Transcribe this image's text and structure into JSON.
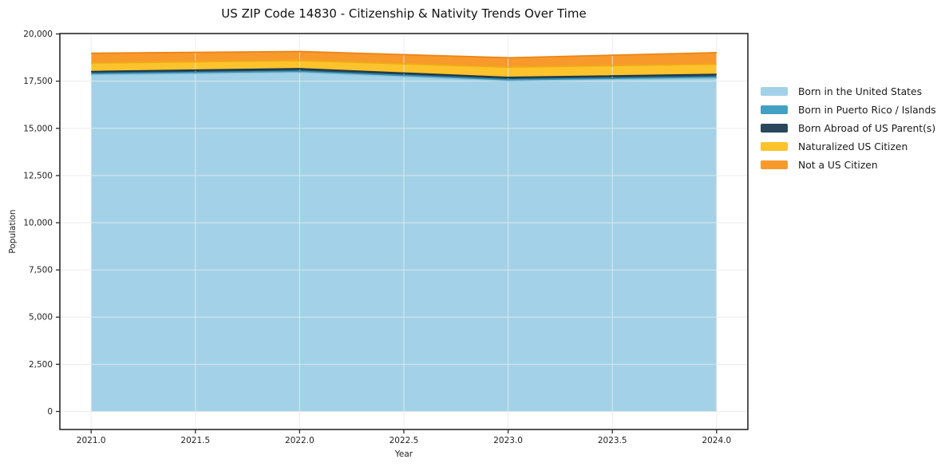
{
  "chart": {
    "title": "US ZIP Code 14830 - Citizenship & Nativity Trends Over Time",
    "xlabel": "Year",
    "ylabel": "Population"
  },
  "chart_data": {
    "type": "area",
    "stacked": true,
    "title": "US ZIP Code 14830 - Citizenship & Nativity Trends Over Time",
    "xlabel": "Year",
    "ylabel": "Population",
    "x": [
      2021,
      2022,
      2023,
      2024
    ],
    "series": [
      {
        "name": "Born in the United States",
        "color": "#a3d2e8",
        "edge": "#8fc5dd",
        "values": [
          17840,
          17960,
          17520,
          17650
        ]
      },
      {
        "name": "Born in Puerto Rico / Islands",
        "color": "#41a0c3",
        "edge": "#3690b2",
        "values": [
          60,
          65,
          60,
          70
        ]
      },
      {
        "name": "Born Abroad of US Parent(s)",
        "color": "#29485d",
        "edge": "#1f3949",
        "values": [
          110,
          135,
          120,
          140
        ]
      },
      {
        "name": "Naturalized US Citizen",
        "color": "#fcc32d",
        "edge": "#efac15",
        "values": [
          450,
          430,
          540,
          540
        ]
      },
      {
        "name": "Not a US Citizen",
        "color": "#f8992c",
        "edge": "#ec8517",
        "values": [
          520,
          480,
          500,
          610
        ]
      }
    ],
    "totals": [
      18980,
      19070,
      18740,
      19010
    ],
    "xlim": [
      2020.85,
      2024.15
    ],
    "ylim": [
      -953,
      20023
    ],
    "x_ticks": [
      {
        "value": 2021.0,
        "label": "2021.0"
      },
      {
        "value": 2021.5,
        "label": "2021.5"
      },
      {
        "value": 2022.0,
        "label": "2022.0"
      },
      {
        "value": 2022.5,
        "label": "2022.5"
      },
      {
        "value": 2023.0,
        "label": "2023.0"
      },
      {
        "value": 2023.5,
        "label": "2023.5"
      },
      {
        "value": 2024.0,
        "label": "2024.0"
      }
    ],
    "y_ticks": [
      {
        "value": 0,
        "label": "0"
      },
      {
        "value": 2500,
        "label": "2,500"
      },
      {
        "value": 5000,
        "label": "5,000"
      },
      {
        "value": 7500,
        "label": "7,500"
      },
      {
        "value": 10000,
        "label": "10,000"
      },
      {
        "value": 12500,
        "label": "12,500"
      },
      {
        "value": 15000,
        "label": "15,000"
      },
      {
        "value": 17500,
        "label": "17,500"
      },
      {
        "value": 20000,
        "label": "20,000"
      }
    ],
    "grid": true,
    "legend_position": "right"
  },
  "colors": {
    "grid": "#e9e9e9",
    "axis_border": "#2b2b2b",
    "tick_text": "#222222"
  }
}
